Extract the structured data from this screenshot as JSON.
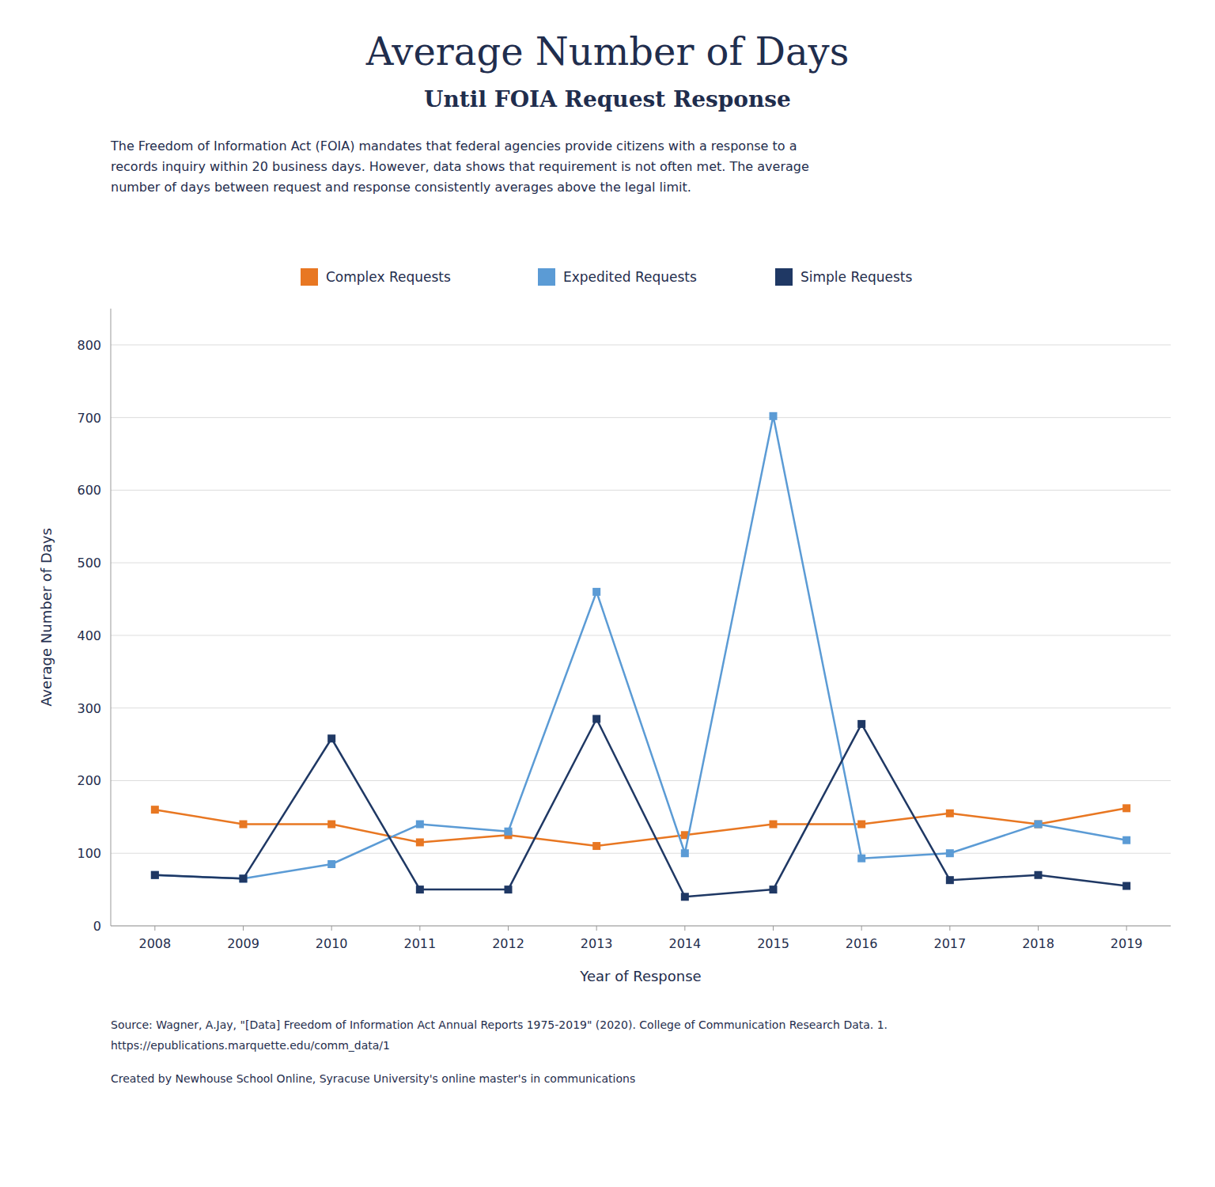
{
  "chart_data": {
    "type": "line",
    "title": "Average Number of Days",
    "subtitle": "Until FOIA Request Response",
    "annotations": [
      "The Freedom of Information Act (FOIA) mandates that federal agencies provide citizens with a response to a\nrecords inquiry within 20 business days. However, data shows that requirement is not often met. The average\nnumber of days between request and response consistently averages above the legal limit.",
      "Source: Wagner, A.Jay, \"[Data] Freedom of Information Act Annual Reports 1975-2019\" (2020). College of Communication Research Data. 1.",
      "https://epublications.marquette.edu/comm_data/1",
      "Created by Newhouse School Online, Syracuse University's online master's in communications"
    ],
    "xlabel": "Year of Response",
    "ylabel": "Average Number of Days",
    "x": [
      2008,
      2009,
      2010,
      2011,
      2012,
      2013,
      2014,
      2015,
      2016,
      2017,
      2018,
      2019
    ],
    "series": [
      {
        "name": "Complex Requests",
        "color": "#E87722",
        "marker": "square",
        "values": [
          160,
          140,
          140,
          115,
          125,
          110,
          125,
          140,
          140,
          155,
          140,
          162
        ]
      },
      {
        "name": "Expedited Requests",
        "color": "#5B9BD5",
        "marker": "square",
        "values": [
          70,
          65,
          85,
          140,
          130,
          460,
          100,
          702,
          93,
          100,
          140,
          118
        ]
      },
      {
        "name": "Simple Requests",
        "color": "#1F3864",
        "marker": "square",
        "values": [
          70,
          65,
          258,
          50,
          50,
          285,
          40,
          50,
          278,
          63,
          70,
          55
        ]
      }
    ],
    "xlim": [
      2007.5,
      2019.5
    ],
    "xticks": [
      2008,
      2009,
      2010,
      2011,
      2012,
      2013,
      2014,
      2015,
      2016,
      2017,
      2018,
      2019
    ],
    "ylim": [
      0,
      850
    ],
    "yticks": [
      0,
      100,
      200,
      300,
      400,
      500,
      600,
      700,
      800
    ],
    "grid": true,
    "legend": "top"
  }
}
